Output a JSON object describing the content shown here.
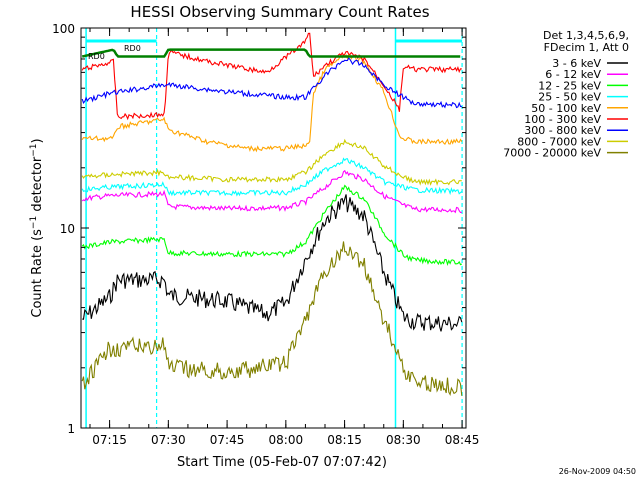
{
  "chart_data": {
    "type": "line",
    "title": "HESSI Observing Summary Count Rates",
    "xlabel": "Start Time (05-Feb-07 07:07:42)",
    "ylabel": "Count Rate (s⁻¹ detector⁻¹)",
    "yscale": "log",
    "ylim": [
      1,
      100
    ],
    "xlim": [
      "07:07:42",
      "08:46:00"
    ],
    "x_ticks": [
      "07:15",
      "07:30",
      "07:45",
      "08:00",
      "08:15",
      "08:30",
      "08:45"
    ],
    "y_ticks": [
      "1",
      "10",
      "100"
    ],
    "legend_header": [
      "Det 1,3,4,5,6,9,",
      "FDecim 1, Att 0"
    ],
    "legend_placement": "right, outside plot",
    "footer_timestamp": "26-Nov-2009 04:50",
    "annotations": [
      {
        "text": "RD0",
        "x": "07:17"
      },
      {
        "text": "RD0",
        "x": "07:10"
      }
    ],
    "vertical_markers": {
      "solid_cyan": [
        "07:09",
        "08:28"
      ],
      "dashed_cyan": [
        "07:27",
        "08:45"
      ]
    },
    "series": [
      {
        "name": "3 - 6 keV",
        "color": "#000000",
        "x": [
          "07:08",
          "07:15",
          "07:17",
          "07:29",
          "07:30",
          "07:45",
          "07:55",
          "08:00",
          "08:05",
          "08:10",
          "08:15",
          "08:20",
          "08:25",
          "08:30",
          "08:33",
          "08:45"
        ],
        "y": [
          3.5,
          4.5,
          5.5,
          5.5,
          4.6,
          4.3,
          3.7,
          4.2,
          7,
          11,
          13.5,
          11.5,
          6,
          3.6,
          3.4,
          3.3
        ]
      },
      {
        "name": "6 - 12 keV",
        "color": "#ff00ff",
        "x": [
          "07:08",
          "07:15",
          "07:29",
          "07:30",
          "07:45",
          "08:00",
          "08:05",
          "08:10",
          "08:15",
          "08:20",
          "08:25",
          "08:30",
          "08:33",
          "08:45"
        ],
        "y": [
          14,
          14.5,
          14.8,
          12.8,
          12.5,
          12.6,
          13.5,
          16,
          19,
          17.5,
          14.5,
          13,
          12.4,
          12.3
        ]
      },
      {
        "name": "12 - 25 keV",
        "color": "#00ff00",
        "x": [
          "07:08",
          "07:15",
          "07:29",
          "07:30",
          "07:45",
          "08:00",
          "08:05",
          "08:10",
          "08:15",
          "08:20",
          "08:25",
          "08:30",
          "08:33",
          "08:45"
        ],
        "y": [
          8,
          8.5,
          8.8,
          7.5,
          7.4,
          7.4,
          8.5,
          12,
          16,
          14,
          9.5,
          7.3,
          6.9,
          6.7
        ]
      },
      {
        "name": "25 - 50 keV",
        "color": "#00ffff",
        "x": [
          "07:08",
          "07:15",
          "07:29",
          "07:30",
          "07:45",
          "08:00",
          "08:05",
          "08:10",
          "08:15",
          "08:20",
          "08:25",
          "08:30",
          "08:33",
          "08:45"
        ],
        "y": [
          15.5,
          16,
          16.5,
          15,
          15,
          15,
          16.5,
          19.5,
          22,
          20,
          17,
          16,
          15.5,
          15.2
        ]
      },
      {
        "name": "50 - 100 keV",
        "color": "#ffa500",
        "x": [
          "07:08",
          "07:16",
          "07:17",
          "07:29",
          "07:30",
          "07:40",
          "07:50",
          "08:00",
          "08:06",
          "08:07",
          "08:10",
          "08:15",
          "08:20",
          "08:25",
          "08:29",
          "08:30",
          "08:33",
          "08:45"
        ],
        "y": [
          28,
          28,
          32,
          35,
          31,
          27,
          25,
          25,
          26,
          47,
          62,
          73,
          68,
          48,
          29,
          28,
          27,
          27
        ]
      },
      {
        "name": "100 - 300 keV",
        "color": "#ff0000",
        "x": [
          "07:08",
          "07:16",
          "07:17",
          "07:29",
          "07:30",
          "07:40",
          "07:55",
          "08:05",
          "08:06",
          "08:07",
          "08:10",
          "08:15",
          "08:20",
          "08:25",
          "08:29",
          "08:30",
          "08:33",
          "08:45"
        ],
        "y": [
          62,
          68,
          36,
          37,
          76,
          68,
          60,
          85,
          98,
          57,
          65,
          75,
          70,
          52,
          39,
          64,
          62,
          62
        ]
      },
      {
        "name": "300 - 800 keV",
        "color": "#0000ff",
        "x": [
          "07:08",
          "07:15",
          "07:29",
          "07:30",
          "07:45",
          "08:00",
          "08:05",
          "08:10",
          "08:15",
          "08:20",
          "08:25",
          "08:30",
          "08:33",
          "08:45"
        ],
        "y": [
          43,
          47,
          52,
          52,
          48,
          45,
          45,
          58,
          70,
          65,
          52,
          45,
          42,
          41
        ]
      },
      {
        "name": "800 - 7000 keV",
        "color": "#cccc00",
        "x": [
          "07:08",
          "07:15",
          "07:29",
          "07:30",
          "07:45",
          "08:00",
          "08:05",
          "08:10",
          "08:15",
          "08:20",
          "08:25",
          "08:30",
          "08:33",
          "08:45"
        ],
        "y": [
          18,
          18.5,
          19,
          18,
          17.5,
          17.5,
          19,
          23.5,
          27,
          25,
          20.5,
          18,
          17,
          17
        ]
      },
      {
        "name": "7000 - 20000 keV",
        "color": "#808000",
        "x": [
          "07:08",
          "07:15",
          "07:29",
          "07:30",
          "07:45",
          "08:00",
          "08:05",
          "08:10",
          "08:15",
          "08:20",
          "08:25",
          "08:30",
          "08:33",
          "08:45"
        ],
        "y": [
          1.6,
          2.5,
          2.6,
          2.0,
          1.9,
          2.1,
          3.5,
          6,
          8,
          6.5,
          3.5,
          2.0,
          1.7,
          1.6
        ]
      },
      {
        "name": "",
        "color": "#008000",
        "x": [
          "07:08",
          "07:16",
          "07:17",
          "07:29",
          "07:30",
          "08:05",
          "08:06",
          "08:45"
        ],
        "y": [
          72,
          78,
          72,
          72,
          78,
          78,
          72,
          72
        ]
      }
    ]
  }
}
